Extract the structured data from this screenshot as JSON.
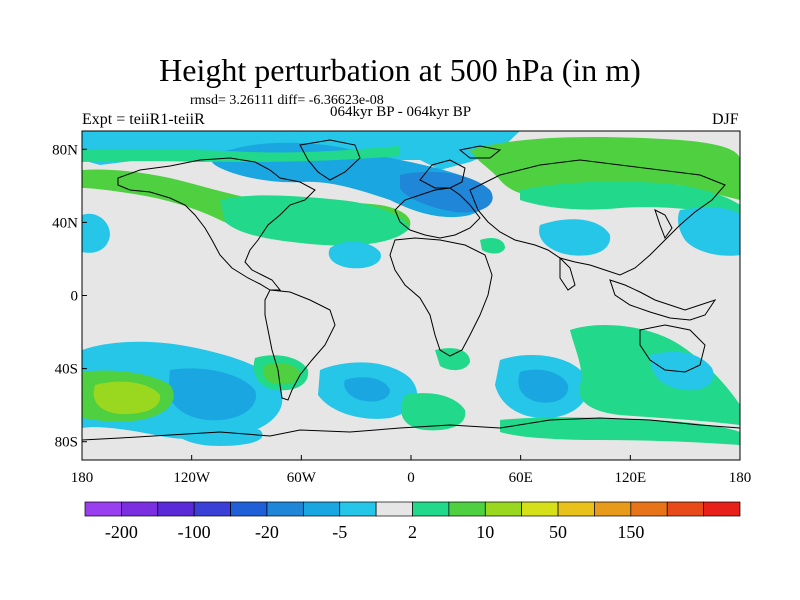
{
  "title": "Height perturbation at 500 hPa (in m)",
  "stats": "rmsd= 3.26111 diff= -6.36623e-08",
  "period": "064kyr BP - 064kyr BP",
  "experiment": "Expt = teiiR1-teiiR",
  "season": "DJF",
  "lat_ticks": [
    {
      "label": "80N",
      "value": 80
    },
    {
      "label": "40N",
      "value": 40
    },
    {
      "label": "0",
      "value": 0
    },
    {
      "label": "40S",
      "value": -40
    },
    {
      "label": "80S",
      "value": -80
    }
  ],
  "lon_ticks": [
    {
      "label": "180",
      "value": -180
    },
    {
      "label": "120W",
      "value": -120
    },
    {
      "label": "60W",
      "value": -60
    },
    {
      "label": "0",
      "value": 0
    },
    {
      "label": "60E",
      "value": 60
    },
    {
      "label": "120E",
      "value": 120
    },
    {
      "label": "180",
      "value": 180
    }
  ],
  "colorbar": {
    "colors": [
      "#9a3ff0",
      "#7a2fe0",
      "#5a2ad8",
      "#3a3fd8",
      "#1f5fd8",
      "#1f86d8",
      "#1aa6e0",
      "#26c6e8",
      "#e6e6e6",
      "#22d88a",
      "#4ed040",
      "#9ad820",
      "#d6e01a",
      "#e8c21a",
      "#e89a1a",
      "#e8741a",
      "#e84a1a",
      "#e8201a"
    ],
    "labels": [
      {
        "text": "-200",
        "boundary": 1
      },
      {
        "text": "-100",
        "boundary": 3
      },
      {
        "text": "-20",
        "boundary": 5
      },
      {
        "text": "-5",
        "boundary": 7
      },
      {
        "text": "2",
        "boundary": 9
      },
      {
        "text": "10",
        "boundary": 11
      },
      {
        "text": "50",
        "boundary": 13
      },
      {
        "text": "150",
        "boundary": 15
      }
    ]
  },
  "field_colors": {
    "background": "#e6e6e6",
    "neg_light": "#26c6e8",
    "neg_mid": "#1aa6e0",
    "neg_strong": "#1f86d8",
    "pos_light": "#22d88a",
    "pos_mid": "#4ed040",
    "pos_strong": "#9ad820"
  }
}
